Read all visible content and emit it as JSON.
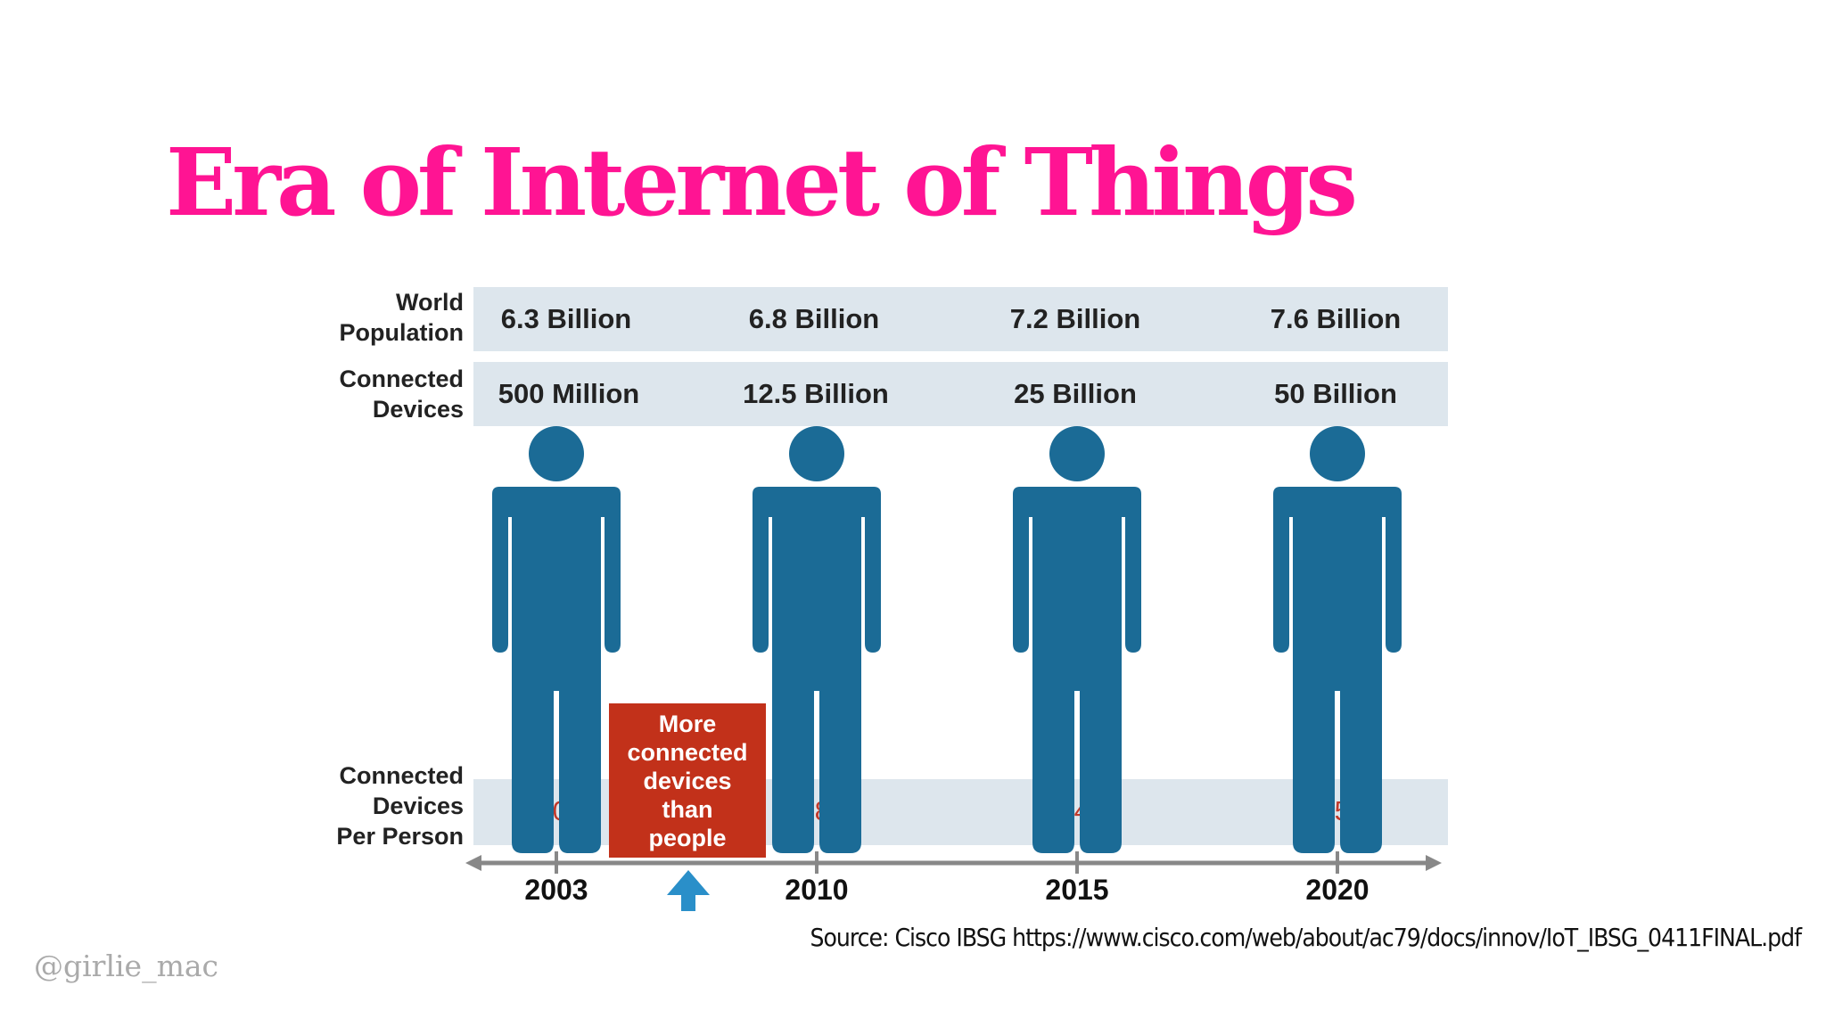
{
  "colors": {
    "title": "#ff1493",
    "figure": "#1b6b96",
    "ratio": "#c0392b",
    "callout": "#c2311a",
    "band": "#dde6ed"
  },
  "title": "Era of Internet of Things",
  "labels": {
    "world_population": [
      "World",
      "Population"
    ],
    "connected_devices": [
      "Connected",
      "Devices"
    ],
    "per_person": [
      "Connected",
      "Devices",
      "Per Person"
    ]
  },
  "columns": [
    {
      "year": "2003",
      "population": "6.3 Billion",
      "devices": "500 Million",
      "per_person": "0.08"
    },
    {
      "year": "2010",
      "population": "6.8 Billion",
      "devices": "12.5 Billion",
      "per_person": "1.84"
    },
    {
      "year": "2015",
      "population": "7.2 Billion",
      "devices": "25 Billion",
      "per_person": "3.47"
    },
    {
      "year": "2020",
      "population": "7.6 Billion",
      "devices": "50 Billion",
      "per_person": "6.58"
    }
  ],
  "callout": [
    "More",
    "connected",
    "devices",
    "than",
    "people"
  ],
  "source": "Source: Cisco IBSG https://www.cisco.com/web/about/ac79/docs/innov/IoT_IBSG_0411FINAL.pdf",
  "handle": "@girlie_mac"
}
